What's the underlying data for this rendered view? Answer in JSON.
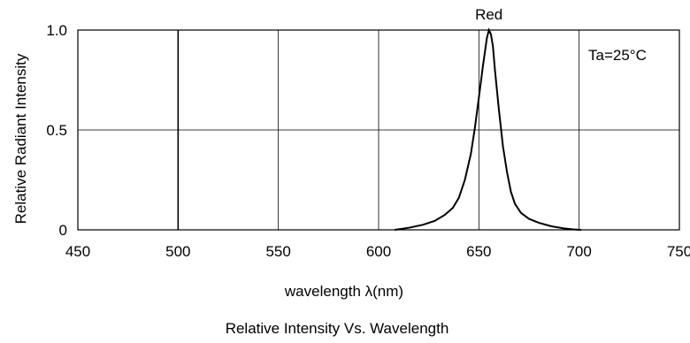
{
  "chart_data": {
    "type": "line",
    "title": "Relative Intensity Vs. Wavelength",
    "xlabel": "wavelength λ(nm)",
    "ylabel": "Relative Radiant Intensity",
    "xlim": [
      450,
      750
    ],
    "ylim": [
      0,
      1.0
    ],
    "x_ticks": [
      "450",
      "500",
      "550",
      "600",
      "650",
      "700",
      "750"
    ],
    "y_ticks": [
      "0",
      "0.5",
      "1.0"
    ],
    "grid": true,
    "annotations": [
      "Ta=25°C"
    ],
    "series": [
      {
        "name": "Red",
        "x": [
          608,
          615,
          622,
          628,
          633,
          637,
          640,
          643,
          646,
          648,
          650,
          652,
          654,
          655,
          656,
          657,
          658,
          660,
          662,
          664,
          666,
          668,
          671,
          675,
          680,
          686,
          692,
          697,
          701
        ],
        "y": [
          0,
          0.01,
          0.025,
          0.045,
          0.075,
          0.11,
          0.16,
          0.25,
          0.38,
          0.51,
          0.66,
          0.82,
          0.96,
          1.0,
          0.98,
          0.92,
          0.8,
          0.6,
          0.42,
          0.29,
          0.19,
          0.13,
          0.085,
          0.055,
          0.035,
          0.018,
          0.008,
          0.002,
          0
        ]
      }
    ]
  }
}
